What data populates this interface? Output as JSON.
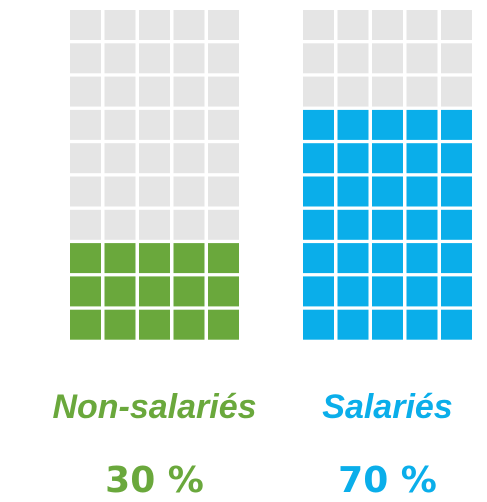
{
  "chart_data": {
    "type": "waffle",
    "categories": [
      "Non-salariés",
      "Salariés"
    ],
    "values": [
      30,
      70
    ],
    "value_labels": [
      "30 %",
      "70 %"
    ],
    "colors": [
      "#6aa83c",
      "#0aaeea"
    ]
  }
}
